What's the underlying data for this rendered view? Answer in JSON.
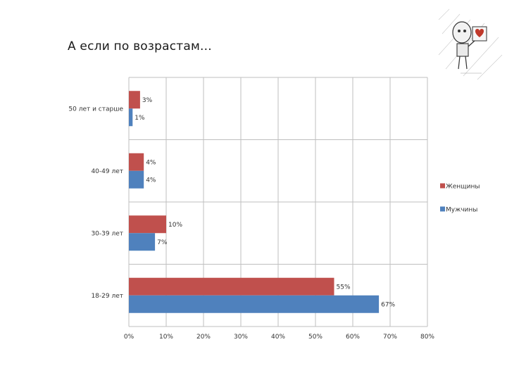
{
  "slide": {
    "title": "А если по возрастам..."
  },
  "colors": {
    "women": "#C0504D",
    "men": "#4F81BD",
    "grid": "#BFBFBF"
  },
  "chart_data": {
    "type": "bar",
    "orientation": "horizontal",
    "title": "",
    "xlabel": "",
    "ylabel": "",
    "categories": [
      "18-29 лет",
      "30-39 лет",
      "40-49 лет",
      "50 лет и старше"
    ],
    "series": [
      {
        "name": "Женщины",
        "values": [
          55,
          10,
          4,
          3
        ],
        "labels": [
          "55%",
          "10%",
          "4%",
          "3%"
        ]
      },
      {
        "name": "Мужчины",
        "values": [
          67,
          7,
          4,
          1
        ],
        "labels": [
          "67%",
          "7%",
          "4%",
          "1%"
        ]
      }
    ],
    "xlim": [
      0,
      80
    ],
    "xticks": [
      0,
      10,
      20,
      30,
      40,
      50,
      60,
      70,
      80
    ],
    "xtick_labels": [
      "0%",
      "10%",
      "20%",
      "30%",
      "40%",
      "50%",
      "60%",
      "70%",
      "80%"
    ],
    "grid": true,
    "legend_position": "right"
  },
  "decoration": {
    "icon": "cartoon-robot-heart-icon"
  }
}
